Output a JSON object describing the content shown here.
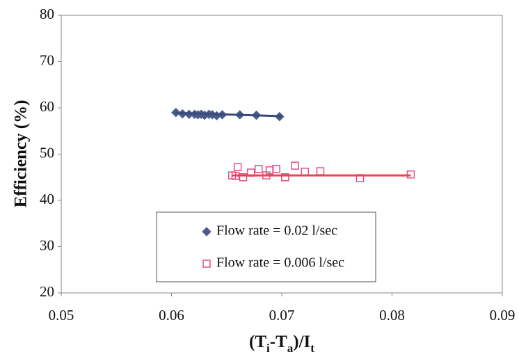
{
  "chart_data": {
    "type": "scatter",
    "x_label": [
      "(T",
      "i",
      "-T",
      "a",
      ")/I",
      "t"
    ],
    "y_label": "Efficiency (%)",
    "xlim": [
      0.05,
      0.09
    ],
    "xticks": [
      0.05,
      0.06,
      0.07,
      0.08,
      0.09
    ],
    "ylim": [
      20,
      80
    ],
    "yticks": [
      20,
      30,
      40,
      50,
      60,
      70,
      80
    ],
    "series": [
      {
        "name": "Flow rate = 0.02 l/sec",
        "marker": "diamond",
        "color": "#4a5a8a",
        "x": [
          0.0604,
          0.061,
          0.0616,
          0.0621,
          0.0624,
          0.0627,
          0.063,
          0.0634,
          0.0637,
          0.0641,
          0.0646,
          0.0662,
          0.0677,
          0.0698
        ],
        "values": [
          59.0,
          58.7,
          58.6,
          58.6,
          58.5,
          58.6,
          58.4,
          58.6,
          58.5,
          58.3,
          58.5,
          58.5,
          58.4,
          58.1
        ],
        "trendline": {
          "color": "#3a4a7a",
          "x": [
            0.0604,
            0.07
          ],
          "values": [
            58.9,
            58.2
          ]
        }
      },
      {
        "name": "Flow rate = 0.006 l/sec",
        "marker": "square",
        "color": "#e0508a",
        "x": [
          0.0655,
          0.0658,
          0.066,
          0.0665,
          0.0672,
          0.0679,
          0.0686,
          0.0689,
          0.0695,
          0.0703,
          0.0712,
          0.0721,
          0.0735,
          0.0771,
          0.0817
        ],
        "values": [
          45.4,
          45.3,
          47.2,
          45.0,
          46.0,
          46.8,
          45.4,
          46.5,
          46.8,
          45.0,
          47.5,
          46.2,
          46.3,
          44.8,
          45.6
        ],
        "trendline": {
          "color": "#e8474f",
          "x": [
            0.0655,
            0.0817
          ],
          "values": [
            45.4,
            45.4
          ]
        }
      }
    ]
  }
}
